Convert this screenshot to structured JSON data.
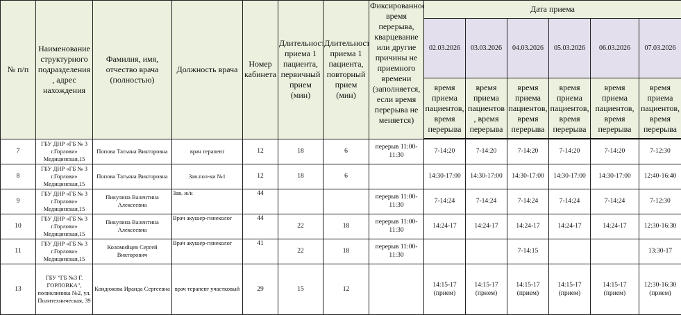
{
  "headers": {
    "num": "№ п/п",
    "org": "Наименование структурного подразделения , адрес нахождения",
    "name": "Фамилия, имя, отчество врача (полностью)",
    "position": "Должность врача",
    "room": "Номер кабинета",
    "first": "Длительность приема 1 пациента, первичный прием (мин)",
    "repeat": "Длительность приема 1 пациента, повторный прием (мин)",
    "break": "Фиксированное время перерыва, кварцевание или другие причины не приемного времени (заполняется, если время перерыва не меняется)",
    "date_group": "Дата приема",
    "dates": [
      "02.03.2026",
      "03.03.2026",
      "04.03.2026",
      "05.03.2026",
      "06.03.2026",
      "07.03.2026"
    ],
    "sub": [
      "время приема пациентов, время перерыва",
      "время приема пациентов , время перерыва",
      "время приема пациентов, время перерыва",
      "время приема пациентов, время перерыва",
      "время приема пациентов, время перерыва",
      "время приема пациентов, время перерыва"
    ]
  },
  "rows": [
    {
      "num": "7",
      "org": "ГБУ ДНР «ГБ № 3 г.Горлови» Медицинская,15",
      "name": "Попова Татьяна Викторовна",
      "position": "врач терапевт",
      "room": "12",
      "first": "18",
      "repeat": "6",
      "break": "перерыв 11:00-11:30",
      "days": [
        "7-14:20",
        "7-14:20",
        "7-14:20",
        "7-14:20",
        "7-14:20",
        "7-12:30"
      ]
    },
    {
      "num": "8",
      "org": "ГБУ ДНР «ГБ № 3 г.Горлови» Медицинская,15",
      "name": "Попова Татьяна Викторовна",
      "position": "Зав.пол-ки №1",
      "room": "12",
      "first": "18",
      "repeat": "6",
      "break": "",
      "days": [
        "14:30-17:00",
        "14:30-17:00",
        "14:30-17:00",
        "14:30-17:00",
        "14:30-17:00",
        "12:40-16:40"
      ]
    },
    {
      "num": "9",
      "org": "ГБУ ДНР «ГБ № 3 г.Горлови» Медицинская,15",
      "name": "Пикулина Валентина Алексеевна",
      "position": "Зав. ж/к",
      "room": "44",
      "first": "",
      "repeat": "",
      "break": "перерыв 11:00-11:30",
      "days": [
        "7-14:24",
        "7-14:24",
        "7-14:24",
        "7-14:24",
        "7-14:24",
        "7-12:30"
      ]
    },
    {
      "num": "10",
      "org": "ГБУ ДНР «ГБ № 3 г.Горлови» Медицинская,15",
      "name": "Пикулина Валентина Алексеевна",
      "position": "Врач акушер-гинеколог",
      "room": "44",
      "first": "22",
      "repeat": "18",
      "break": "перерыв 11:00-11:30",
      "days": [
        "14:24-17",
        "14:24-17",
        "14:24-17",
        "14:24-17",
        "14:24-17",
        "12:30-16:30"
      ]
    },
    {
      "num": "11",
      "org": "ГБУ ДНР «ГБ № 3 г.Горлови» Медицинская,15",
      "name": "Коломийцев Сергей Викторович",
      "position": "Врач акушер-гинеколог",
      "room": "41",
      "first": "22",
      "repeat": "18",
      "break": "перерыв 11:00-11:30",
      "days": [
        "",
        "",
        "7-14:15",
        "",
        "",
        "13:30-17"
      ]
    },
    {
      "num": "13",
      "org": "ГБУ \"ГБ №3 Г. ГОРЛОВКА\", поликлиника №2, ул. Политехническая, 39",
      "name": "Кондюкова Ираида Сергеевна",
      "position": "врач терапевт участковый",
      "room": "29",
      "first": "15",
      "repeat": "12",
      "break": "",
      "days": [
        "14:15-17 (прием)",
        "14:15-17 (прием)",
        "14:15-17 (прием)",
        "14:15-17 (прием)",
        "14:15-17 (прием)",
        "12:30-16:30 (прием)"
      ]
    }
  ],
  "colors": {
    "header_bg": "#ebf1de",
    "date_bg": "#e4dfec"
  }
}
